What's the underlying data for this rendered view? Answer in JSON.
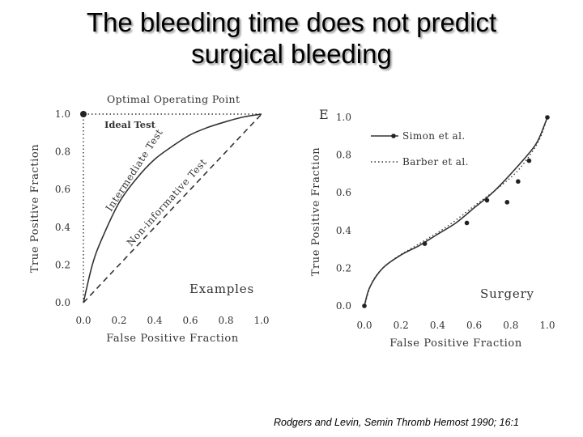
{
  "slide": {
    "title_line1": "The bleeding time does not predict",
    "title_line2": "surgical bleeding",
    "citation": "Rodgers and Levin, Semin Thromb Hemost 1990; 16:1"
  },
  "colors": {
    "ink": "#333333",
    "title_shadow": "#9a9a9a"
  },
  "chart_data": [
    {
      "type": "line",
      "title": "Examples",
      "xlabel": "False Positive Fraction",
      "ylabel": "True Positive Fraction",
      "xlim": [
        0,
        1
      ],
      "ylim": [
        0,
        1
      ],
      "x_ticks": [
        "0.0",
        "0.2",
        "0.4",
        "0.6",
        "0.8",
        "1.0"
      ],
      "y_ticks": [
        "0.0",
        "0.2",
        "0.4",
        "0.6",
        "0.8",
        "1.0"
      ],
      "annotations": {
        "optimal": "Optimal Operating Point",
        "ideal": "Ideal Test",
        "intermediate": "Intermediate Test",
        "noninformative": "Non-informative Test"
      },
      "series": [
        {
          "name": "Ideal Test",
          "style": "dotted",
          "x": [
            0,
            0,
            1
          ],
          "y": [
            0,
            1,
            1
          ]
        },
        {
          "name": "Intermediate Test",
          "style": "solid",
          "x": [
            0,
            0.05,
            0.1,
            0.2,
            0.3,
            0.4,
            0.5,
            0.6,
            0.7,
            0.8,
            0.9,
            1.0
          ],
          "y": [
            0,
            0.2,
            0.33,
            0.53,
            0.66,
            0.76,
            0.83,
            0.89,
            0.93,
            0.96,
            0.985,
            1.0
          ]
        },
        {
          "name": "Non-informative Test",
          "style": "dashed",
          "x": [
            0,
            1
          ],
          "y": [
            0,
            1
          ]
        }
      ],
      "optimal_point": {
        "x": 0,
        "y": 1
      }
    },
    {
      "type": "line",
      "title": "Surgery",
      "panel_letter": "E",
      "xlabel": "False Positive Fraction",
      "ylabel": "True Positive Fraction",
      "xlim": [
        0,
        1
      ],
      "ylim": [
        0,
        1
      ],
      "x_ticks": [
        "0.0",
        "0.2",
        "0.4",
        "0.6",
        "0.8",
        "1.0"
      ],
      "y_ticks": [
        "0.0",
        "0.2",
        "0.4",
        "0.6",
        "0.8",
        "1.0"
      ],
      "legend": [
        "Simon et al.",
        "Barber et al."
      ],
      "legend_position": "top-left",
      "series": [
        {
          "name": "Simon et al.",
          "style": "solid-with-markers",
          "x": [
            0,
            0.03,
            0.1,
            0.2,
            0.3,
            0.4,
            0.5,
            0.6,
            0.7,
            0.8,
            0.9,
            0.95,
            1.0
          ],
          "y": [
            0,
            0.1,
            0.2,
            0.27,
            0.32,
            0.38,
            0.44,
            0.52,
            0.6,
            0.7,
            0.81,
            0.88,
            1.0
          ],
          "markers": {
            "x": [
              0,
              0.33,
              0.56,
              0.67,
              0.78,
              0.84,
              0.9,
              1.0
            ],
            "y": [
              0,
              0.33,
              0.44,
              0.56,
              0.55,
              0.66,
              0.77,
              1.0
            ]
          }
        },
        {
          "name": "Barber et al.",
          "style": "dotted",
          "x": [
            0,
            0.05,
            0.15,
            0.3,
            0.45,
            0.6,
            0.75,
            0.85,
            0.95,
            1.0
          ],
          "y": [
            0,
            0.14,
            0.24,
            0.33,
            0.42,
            0.53,
            0.64,
            0.73,
            0.87,
            1.0
          ]
        }
      ]
    }
  ]
}
